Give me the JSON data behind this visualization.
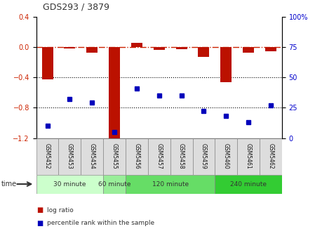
{
  "title": "GDS293 / 3879",
  "samples": [
    "GSM5452",
    "GSM5453",
    "GSM5454",
    "GSM5455",
    "GSM5456",
    "GSM5457",
    "GSM5458",
    "GSM5459",
    "GSM5460",
    "GSM5461",
    "GSM5462"
  ],
  "log_ratio": [
    -0.43,
    -0.02,
    -0.08,
    -1.22,
    0.05,
    -0.04,
    -0.03,
    -0.13,
    -0.46,
    -0.08,
    -0.06
  ],
  "percentile": [
    10,
    32,
    29,
    5,
    41,
    35,
    35,
    22,
    18,
    13,
    27
  ],
  "ylim_left": [
    -1.2,
    0.4
  ],
  "ylim_right": [
    0,
    100
  ],
  "yticks_left": [
    -1.2,
    -0.8,
    -0.4,
    0.0,
    0.4
  ],
  "yticks_right": [
    0,
    25,
    50,
    75,
    100
  ],
  "bar_color": "#bb1100",
  "dot_color": "#0000bb",
  "ref_line_color": "#cc2200",
  "grid_color": "#000000",
  "time_groups": [
    {
      "label": "30 minute",
      "start": 0,
      "end": 2,
      "color": "#ccffcc"
    },
    {
      "label": "60 minute",
      "start": 3,
      "end": 3,
      "color": "#99ee99"
    },
    {
      "label": "120 minute",
      "start": 4,
      "end": 7,
      "color": "#66dd66"
    },
    {
      "label": "240 minute",
      "start": 8,
      "end": 10,
      "color": "#33cc33"
    }
  ],
  "legend_bar_label": "log ratio",
  "legend_dot_label": "percentile rank within the sample",
  "bg_color": "#ffffff",
  "tick_label_color_left": "#cc2200",
  "tick_label_color_right": "#0000cc",
  "sample_cell_color": "#dddddd",
  "sample_cell_edge_color": "#888888"
}
